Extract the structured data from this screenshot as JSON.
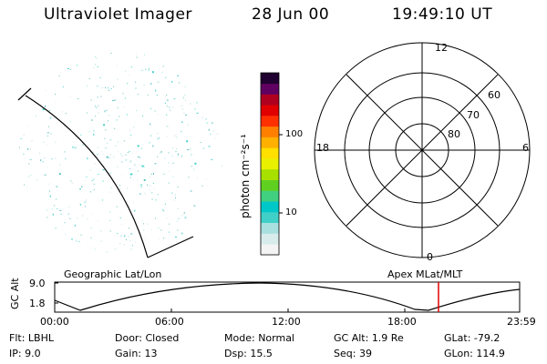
{
  "header": {
    "instrument": "Ultraviolet Imager",
    "date": "28 Jun 00",
    "time": "19:49:10 UT"
  },
  "colorbar": {
    "label": "photon cm⁻²s⁻¹",
    "ticks": [
      {
        "label": "100",
        "value": 100
      },
      {
        "label": "10",
        "value": 10
      }
    ],
    "colors": [
      "#f4f4f4",
      "#d8ecec",
      "#a8e0e0",
      "#40d0c8",
      "#00c8c8",
      "#40d080",
      "#60d020",
      "#a8e000",
      "#e8f000",
      "#ffe000",
      "#ffb000",
      "#ff8000",
      "#ff3000",
      "#e00000",
      "#b00020",
      "#600060",
      "#200030"
    ]
  },
  "polar_plot": {
    "mlt_labels": [
      {
        "label": "12",
        "pos": "top"
      },
      {
        "label": "18",
        "pos": "left"
      },
      {
        "label": "6",
        "pos": "right"
      },
      {
        "label": "0",
        "pos": "bottom"
      }
    ],
    "lat_labels": [
      "60",
      "70",
      "80"
    ]
  },
  "panel_labels": {
    "left": "Geographic Lat/Lon",
    "right": "Apex MLat/MLT"
  },
  "altitude_plot": {
    "ylabel": "GC Alt",
    "y_ticks": [
      "9.0",
      "1.8"
    ],
    "x_ticks": [
      "00:00",
      "06:00",
      "12:00",
      "18:00",
      "23:59"
    ]
  },
  "info": {
    "row1": [
      {
        "key": "Flt:",
        "val": "LBHL"
      },
      {
        "key": "Door:",
        "val": "Closed"
      },
      {
        "key": "Mode:",
        "val": "Normal"
      },
      {
        "key": "GC Alt:",
        "val": "1.9 Re"
      },
      {
        "key": "GLat:",
        "val": "-79.2"
      }
    ],
    "row2": [
      {
        "key": "IP:",
        "val": "9.0"
      },
      {
        "key": "Gain:",
        "val": "13"
      },
      {
        "key": "Dsp:",
        "val": "15.5"
      },
      {
        "key": "Seq:",
        "val": "39"
      },
      {
        "key": "GLon:",
        "val": "114.9"
      }
    ]
  }
}
